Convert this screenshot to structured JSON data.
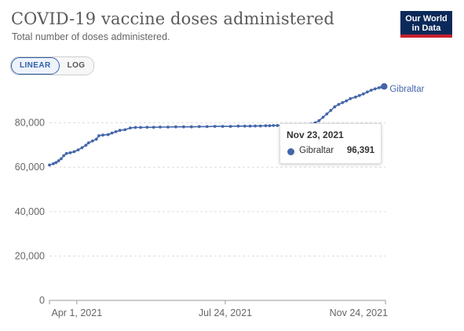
{
  "header": {
    "title": "COVID-19 vaccine doses administered",
    "subtitle": "Total number of doses administered."
  },
  "logo": {
    "line1": "Our World",
    "line2": "in Data"
  },
  "scale_toggle": {
    "linear_label": "LINEAR",
    "log_label": "LOG",
    "selected": "LINEAR"
  },
  "colors": {
    "series": "#4466aa",
    "axis": "#666666",
    "grid": "#dddddd",
    "accent": "#3360a9"
  },
  "tooltip": {
    "date": "Nov 23, 2021",
    "series_name": "Gibraltar",
    "value": "96,391"
  },
  "chart_data": {
    "type": "line",
    "title": "COVID-19 vaccine doses administered",
    "subtitle": "Total number of doses administered.",
    "scale": "linear",
    "xlim": [
      "2021-03-11",
      "2021-11-24"
    ],
    "ylim": [
      0,
      100000
    ],
    "x_ticks": [
      {
        "date": "2021-04-01",
        "label": "Apr 1, 2021"
      },
      {
        "date": "2021-07-24",
        "label": "Jul 24, 2021"
      },
      {
        "date": "2021-11-24",
        "label": "Nov 24, 2021"
      }
    ],
    "y_ticks": [
      {
        "value": 0,
        "label": "0"
      },
      {
        "value": 20000,
        "label": "20,000"
      },
      {
        "value": 40000,
        "label": "40,000"
      },
      {
        "value": 60000,
        "label": "60,000"
      },
      {
        "value": 80000,
        "label": "80,000"
      }
    ],
    "grid": "horizontal",
    "series": [
      {
        "name": "Gibraltar",
        "points": [
          [
            "2021-03-11",
            61000
          ],
          [
            "2021-03-14",
            61600
          ],
          [
            "2021-03-16",
            62100
          ],
          [
            "2021-03-18",
            62900
          ],
          [
            "2021-03-20",
            63800
          ],
          [
            "2021-03-22",
            65200
          ],
          [
            "2021-03-24",
            66200
          ],
          [
            "2021-03-27",
            66500
          ],
          [
            "2021-03-30",
            67000
          ],
          [
            "2021-04-02",
            67800
          ],
          [
            "2021-04-05",
            68800
          ],
          [
            "2021-04-08",
            69900
          ],
          [
            "2021-04-10",
            71000
          ],
          [
            "2021-04-13",
            71800
          ],
          [
            "2021-04-16",
            72600
          ],
          [
            "2021-04-18",
            74200
          ],
          [
            "2021-04-21",
            74500
          ],
          [
            "2021-04-25",
            74700
          ],
          [
            "2021-04-28",
            75400
          ],
          [
            "2021-05-01",
            76000
          ],
          [
            "2021-05-04",
            76600
          ],
          [
            "2021-05-08",
            76900
          ],
          [
            "2021-05-12",
            77700
          ],
          [
            "2021-05-16",
            77900
          ],
          [
            "2021-05-20",
            77900
          ],
          [
            "2021-05-25",
            78000
          ],
          [
            "2021-05-30",
            78000
          ],
          [
            "2021-06-04",
            78100
          ],
          [
            "2021-06-10",
            78100
          ],
          [
            "2021-06-16",
            78200
          ],
          [
            "2021-06-22",
            78200
          ],
          [
            "2021-06-28",
            78200
          ],
          [
            "2021-07-04",
            78300
          ],
          [
            "2021-07-10",
            78300
          ],
          [
            "2021-07-16",
            78400
          ],
          [
            "2021-07-22",
            78400
          ],
          [
            "2021-07-28",
            78400
          ],
          [
            "2021-08-03",
            78500
          ],
          [
            "2021-08-08",
            78500
          ],
          [
            "2021-08-12",
            78500
          ],
          [
            "2021-08-16",
            78600
          ],
          [
            "2021-08-20",
            78600
          ],
          [
            "2021-08-24",
            78700
          ],
          [
            "2021-08-27",
            78700
          ],
          [
            "2021-08-30",
            78800
          ],
          [
            "2021-09-02",
            78800
          ],
          [
            "2021-09-05",
            78900
          ],
          [
            "2021-09-08",
            78900
          ],
          [
            "2021-09-11",
            79000
          ],
          [
            "2021-09-14",
            79100
          ],
          [
            "2021-09-18",
            79100
          ],
          [
            "2021-09-22",
            79200
          ],
          [
            "2021-09-28",
            79400
          ],
          [
            "2021-10-01",
            80000
          ],
          [
            "2021-10-04",
            81000
          ],
          [
            "2021-10-07",
            82500
          ],
          [
            "2021-10-10",
            84000
          ],
          [
            "2021-10-13",
            85600
          ],
          [
            "2021-10-16",
            87200
          ],
          [
            "2021-10-19",
            88300
          ],
          [
            "2021-10-22",
            89100
          ],
          [
            "2021-10-25",
            89900
          ],
          [
            "2021-10-28",
            90900
          ],
          [
            "2021-11-01",
            91600
          ],
          [
            "2021-11-04",
            92300
          ],
          [
            "2021-11-07",
            93000
          ],
          [
            "2021-11-10",
            93900
          ],
          [
            "2021-11-13",
            94700
          ],
          [
            "2021-11-16",
            95300
          ],
          [
            "2021-11-19",
            95800
          ],
          [
            "2021-11-21",
            96100
          ],
          [
            "2021-11-23",
            96391
          ]
        ]
      }
    ],
    "highlight": {
      "date": "2021-11-23",
      "value": 96391,
      "series": "Gibraltar"
    },
    "end_label": "Gibraltar"
  }
}
